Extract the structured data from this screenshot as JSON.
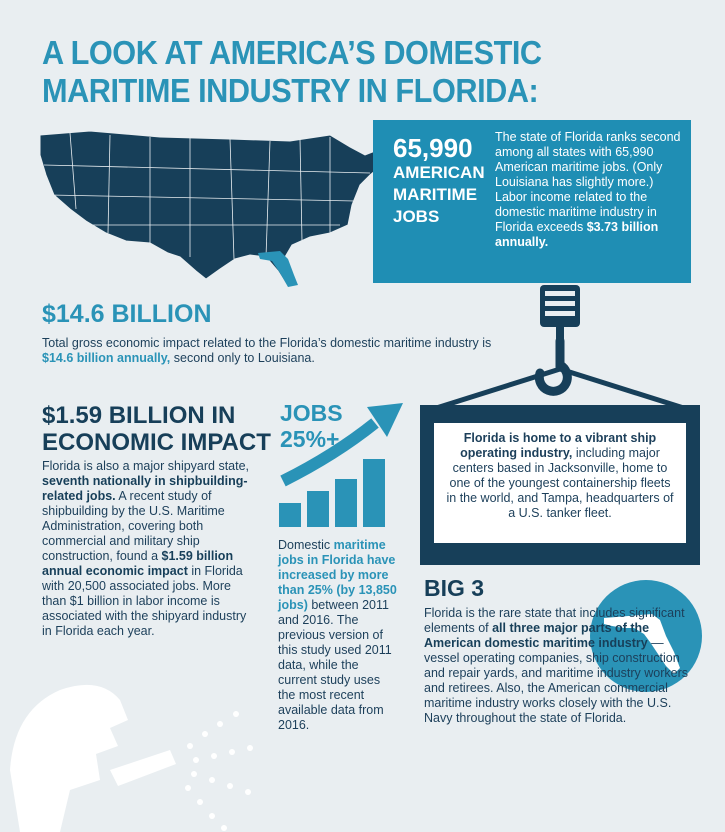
{
  "title": "A LOOK AT AMERICA’S DOMESTIC MARITIME INDUSTRY IN FLORIDA:",
  "jobs_box": {
    "number": "65,990",
    "label": "AMERICAN MARITIME JOBS",
    "desc_1": "The state of Florida ranks second among all states with 65,990 American maritime jobs. (Only Louisiana has slightly more.) Labor income related to the domestic maritime industry in Florida exceeds ",
    "desc_bold": "$3.73 billion annually."
  },
  "gross": {
    "heading": "$14.6 BILLION",
    "text_1": "Total gross economic impact related to the Florida’s domestic maritime industry is ",
    "text_bold": "$14.6 billion annually,",
    "text_2": " second only to Louisiana."
  },
  "econ": {
    "heading": "$1.59 BILLION IN ECONOMIC IMPACT",
    "t1": "Florida is also a major shipyard state, ",
    "b1": "seventh nationally in shipbuilding-related jobs.",
    "t2": " A recent study of shipbuilding by the U.S. Maritime Administration, covering both commercial and military ship construction, found a ",
    "b2": "$1.59 billion annual economic impact",
    "t3": " in Florida with 20,500 associated jobs. More than $1 billion in labor income is associated with the shipyard industry in Florida each year."
  },
  "growth": {
    "label_1": "JOBS",
    "label_2": "25%+",
    "t1": "Domestic ",
    "b1": "maritime jobs in Florida have increased by more than 25% (by 13,850 jobs)",
    "t2": " between 2011 and 2016. The previous version of this study used 2011 data, while the current study uses the most recent available data from 2016."
  },
  "shipping": {
    "b1": "Florida is home to a vibrant ship operating industry,",
    "t1": " including major centers based in Jacksonville, home to one of the youngest containership fleets in the world, and Tampa, headquarters of a U.S. tanker fleet."
  },
  "big3": {
    "heading": "BIG 3",
    "t1": "Florida is the rare state that includes significant elements of ",
    "b1": "all three major parts of the American domestic maritime industry",
    "t2": " — vessel operating companies, ship construction and repair yards, and maritime industry workers and retirees. Also, the American commercial maritime industry works closely with the U.S. Navy throughout the state of Florida."
  },
  "colors": {
    "accent": "#2a93b7",
    "navy": "#173f59",
    "background": "#e9eef1"
  },
  "icons": [
    "us-map-icon",
    "crane-hook-icon",
    "growth-chart-icon",
    "florida-icon",
    "welder-icon"
  ]
}
